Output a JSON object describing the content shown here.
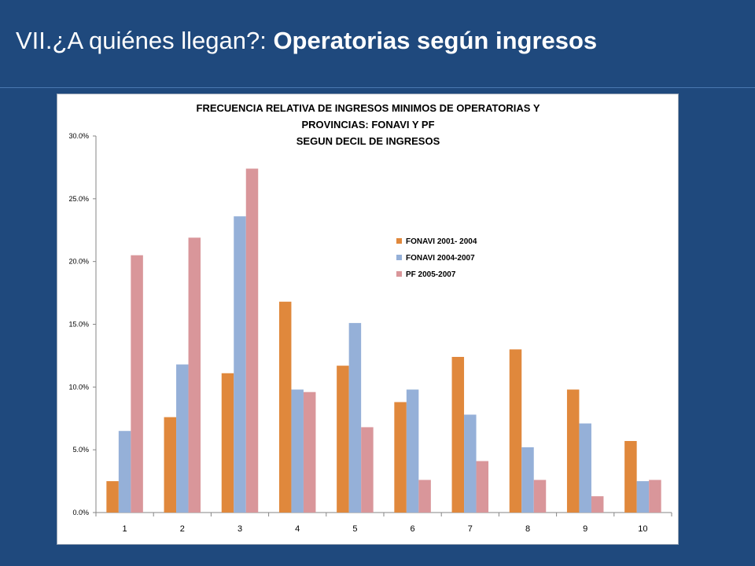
{
  "slide": {
    "title_prefix": "VII.¿A quiénes llegan?: ",
    "title_bold": "Operatorias según ingresos"
  },
  "colors": {
    "background": "#1f497d",
    "series": [
      "#e0883c",
      "#95b0d8",
      "#d9969a"
    ]
  },
  "chart_data": {
    "type": "bar",
    "title": "FRECUENCIA RELATIVA DE INGRESOS MINIMOS DE OPERATORIAS Y PROVINCIAS: FONAVI Y PF SEGUN DECIL DE INGRESOS",
    "title_lines": [
      "FRECUENCIA RELATIVA DE INGRESOS MINIMOS DE OPERATORIAS Y",
      "PROVINCIAS: FONAVI Y PF",
      "SEGUN DECIL DE INGRESOS"
    ],
    "categories": [
      "1",
      "2",
      "3",
      "4",
      "5",
      "6",
      "7",
      "8",
      "9",
      "10"
    ],
    "series": [
      {
        "name": "FONAVI 2001- 2004",
        "values": [
          2.5,
          7.6,
          11.1,
          16.8,
          11.7,
          8.8,
          12.4,
          13.0,
          9.8,
          5.7
        ]
      },
      {
        "name": "FONAVI 2004-2007",
        "values": [
          6.5,
          11.8,
          23.6,
          9.8,
          15.1,
          9.8,
          7.8,
          5.2,
          7.1,
          2.5
        ]
      },
      {
        "name": "PF 2005-2007",
        "values": [
          20.5,
          21.9,
          27.4,
          9.6,
          6.8,
          2.6,
          4.1,
          2.6,
          1.3,
          2.6
        ]
      }
    ],
    "yticks": [
      "0.0%",
      "5.0%",
      "10.0%",
      "15.0%",
      "20.0%",
      "25.0%",
      "30.0%"
    ],
    "ylim": [
      0,
      30
    ],
    "xlabel": "",
    "ylabel": "",
    "grid": false,
    "legend_position": "right-middle"
  }
}
